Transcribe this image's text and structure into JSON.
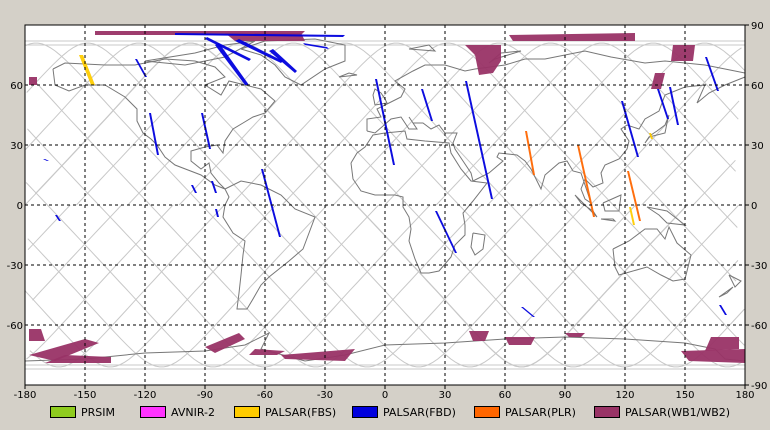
{
  "map": {
    "lon_ticks": [
      "-180",
      "-150",
      "-120",
      "-90",
      "-60",
      "-30",
      "0",
      "30",
      "60",
      "90",
      "120",
      "150",
      "180"
    ],
    "lat_ticks_right": [
      "90",
      "60",
      "30",
      "0",
      "-30",
      "-60",
      "-90"
    ],
    "lat_ticks_left": [
      "60",
      "30",
      "0",
      "-30",
      "-60"
    ],
    "extent": {
      "lon": [
        -180,
        180
      ],
      "lat": [
        -90,
        90
      ]
    },
    "grid": "dashed"
  },
  "legend": [
    {
      "label": "PRSIM",
      "color": "#8fcc1f"
    },
    {
      "label": "AVNIR-2",
      "color": "#ff33ff"
    },
    {
      "label": "PALSAR(FBS)",
      "color": "#ffcc00"
    },
    {
      "label": "PALSAR(FBD)",
      "color": "#0000dd"
    },
    {
      "label": "PALSAR(PLR)",
      "color": "#ff6600"
    },
    {
      "label": "PALSAR(WB1/WB2)",
      "color": "#993366"
    }
  ],
  "colors": {
    "background": "#d4d0c8",
    "plot": "#ffffff",
    "orbit": "#c8c8c8",
    "coast": "#777777"
  }
}
